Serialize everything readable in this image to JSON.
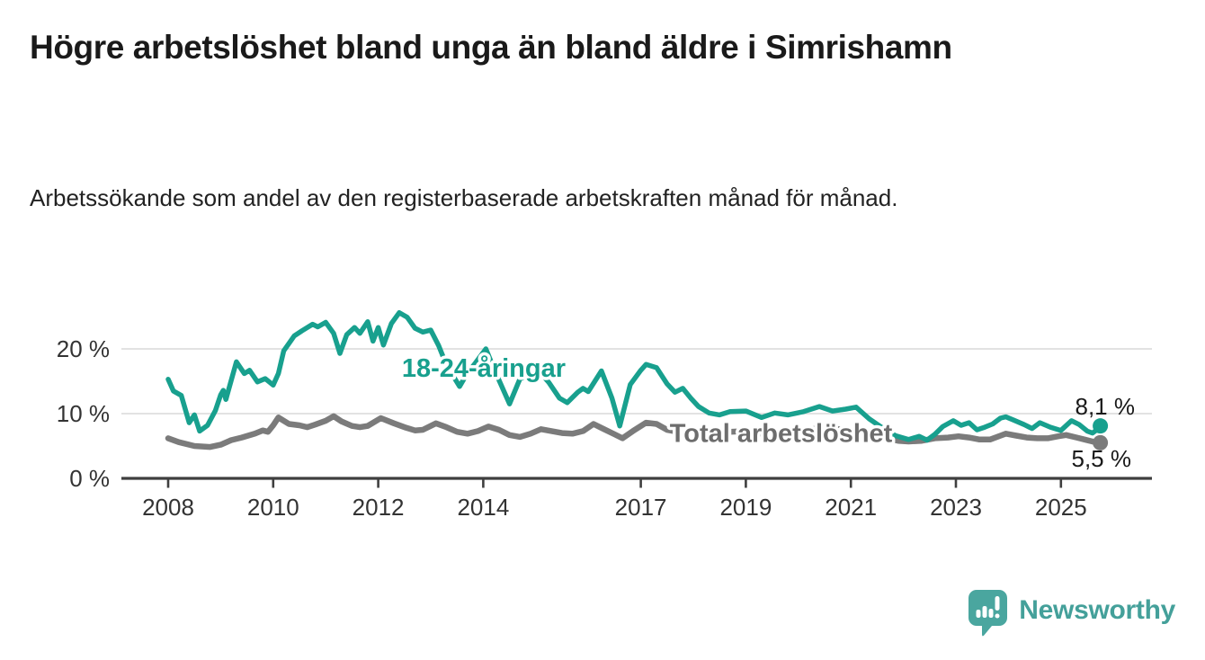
{
  "header": {
    "title": "Högre arbetslöshet bland unga än bland äldre i Simrishamn",
    "subtitle": "Arbetssökande som andel av den registerbaserade arbetskraften månad för månad."
  },
  "brand": {
    "name": "Newsworthy",
    "color": "#4aa69f",
    "icon": "newsworthy-speech-bubble-barchart-icon"
  },
  "chart_data": {
    "type": "line",
    "title": "Högre arbetslöshet bland unga än bland äldre i Simrishamn",
    "subtitle": "Arbetssökande som andel av den registerbaserade arbetskraften månad för månad.",
    "unit": "%",
    "grid": "horizontal",
    "legend_position": "inline-labels",
    "x_axis": {
      "type": "time-years",
      "domain": [
        2008.0,
        2025.75
      ],
      "ticks": [
        2008,
        2010,
        2012,
        2014,
        2017,
        2019,
        2021,
        2023,
        2025
      ],
      "tick_labels": [
        "2008",
        "2010",
        "2012",
        "2014",
        "2017",
        "2019",
        "2021",
        "2023",
        "2025"
      ]
    },
    "y_axis": {
      "domain": [
        0,
        27
      ],
      "ticks": [
        0,
        10,
        20
      ],
      "tick_labels": [
        "0 %",
        "10 %",
        "20 %"
      ]
    },
    "colors": {
      "grid": "#d9d9d9",
      "axis": "#3f3f3f",
      "tick_text": "#333333",
      "value_label_text": "#1a1a1a"
    },
    "series": [
      {
        "name": "Total arbetslöshet",
        "color": "#7b7b7b",
        "label_color": "#6d6d6d",
        "label_anchor": {
          "t": 2017.55,
          "v": 7.0
        },
        "end_value": 5.5,
        "end_label": "5,5 %",
        "stroke_width": 6.5,
        "points": [
          [
            2008.0,
            6.2
          ],
          [
            2008.2,
            5.6
          ],
          [
            2008.5,
            5.0
          ],
          [
            2008.8,
            4.85
          ],
          [
            2009.0,
            5.2
          ],
          [
            2009.2,
            5.9
          ],
          [
            2009.4,
            6.3
          ],
          [
            2009.65,
            6.9
          ],
          [
            2009.8,
            7.4
          ],
          [
            2009.9,
            7.2
          ],
          [
            2010.0,
            8.2
          ],
          [
            2010.1,
            9.4
          ],
          [
            2010.3,
            8.4
          ],
          [
            2010.5,
            8.2
          ],
          [
            2010.65,
            7.9
          ],
          [
            2010.8,
            8.3
          ],
          [
            2011.0,
            8.9
          ],
          [
            2011.15,
            9.6
          ],
          [
            2011.3,
            8.8
          ],
          [
            2011.5,
            8.1
          ],
          [
            2011.65,
            7.9
          ],
          [
            2011.8,
            8.1
          ],
          [
            2012.05,
            9.3
          ],
          [
            2012.3,
            8.5
          ],
          [
            2012.5,
            7.9
          ],
          [
            2012.7,
            7.4
          ],
          [
            2012.85,
            7.5
          ],
          [
            2013.1,
            8.5
          ],
          [
            2013.3,
            7.9
          ],
          [
            2013.5,
            7.2
          ],
          [
            2013.7,
            6.9
          ],
          [
            2013.9,
            7.3
          ],
          [
            2014.1,
            8.0
          ],
          [
            2014.3,
            7.5
          ],
          [
            2014.5,
            6.7
          ],
          [
            2014.7,
            6.4
          ],
          [
            2014.9,
            6.9
          ],
          [
            2015.1,
            7.6
          ],
          [
            2015.3,
            7.3
          ],
          [
            2015.5,
            7.0
          ],
          [
            2015.7,
            6.9
          ],
          [
            2015.9,
            7.3
          ],
          [
            2016.1,
            8.4
          ],
          [
            2016.3,
            7.6
          ],
          [
            2016.5,
            6.8
          ],
          [
            2016.65,
            6.2
          ],
          [
            2016.85,
            7.3
          ],
          [
            2017.1,
            8.6
          ],
          [
            2017.3,
            8.4
          ],
          [
            2017.5,
            7.5
          ],
          [
            2017.7,
            7.2
          ],
          [
            2017.9,
            7.5
          ],
          [
            2018.1,
            7.3
          ],
          [
            2018.4,
            7.0
          ],
          [
            2018.7,
            7.2
          ],
          [
            2019.0,
            7.3
          ],
          [
            2019.3,
            6.9
          ],
          [
            2019.6,
            7.0
          ],
          [
            2019.9,
            7.1
          ],
          [
            2020.2,
            7.4
          ],
          [
            2020.45,
            8.0
          ],
          [
            2020.7,
            7.7
          ],
          [
            2021.0,
            7.2
          ],
          [
            2021.3,
            6.8
          ],
          [
            2021.6,
            6.3
          ],
          [
            2021.9,
            5.8
          ],
          [
            2022.1,
            5.7
          ],
          [
            2022.35,
            5.8
          ],
          [
            2022.6,
            6.2
          ],
          [
            2022.85,
            6.3
          ],
          [
            2023.05,
            6.5
          ],
          [
            2023.25,
            6.3
          ],
          [
            2023.45,
            6.0
          ],
          [
            2023.65,
            6.0
          ],
          [
            2023.85,
            6.6
          ],
          [
            2023.95,
            6.9
          ],
          [
            2024.15,
            6.6
          ],
          [
            2024.35,
            6.3
          ],
          [
            2024.55,
            6.2
          ],
          [
            2024.75,
            6.2
          ],
          [
            2024.95,
            6.5
          ],
          [
            2025.1,
            6.7
          ],
          [
            2025.3,
            6.3
          ],
          [
            2025.45,
            6.0
          ],
          [
            2025.6,
            5.7
          ],
          [
            2025.75,
            5.5
          ]
        ]
      },
      {
        "name": "18-24-åringar",
        "color": "#18a08e",
        "label_color": "#18a08e",
        "label_anchor": {
          "t": 2012.45,
          "v": 17.1
        },
        "end_value": 8.1,
        "end_label": "8,1 %",
        "stroke_width": 5.5,
        "points": [
          [
            2008.0,
            15.3
          ],
          [
            2008.1,
            13.5
          ],
          [
            2008.25,
            12.8
          ],
          [
            2008.4,
            8.6
          ],
          [
            2008.5,
            9.8
          ],
          [
            2008.6,
            7.3
          ],
          [
            2008.75,
            8.2
          ],
          [
            2008.9,
            10.5
          ],
          [
            2009.0,
            12.9
          ],
          [
            2009.05,
            13.6
          ],
          [
            2009.1,
            12.2
          ],
          [
            2009.3,
            18.0
          ],
          [
            2009.45,
            16.2
          ],
          [
            2009.55,
            16.7
          ],
          [
            2009.7,
            14.9
          ],
          [
            2009.85,
            15.4
          ],
          [
            2010.0,
            14.4
          ],
          [
            2010.1,
            16.2
          ],
          [
            2010.2,
            19.7
          ],
          [
            2010.4,
            22.0
          ],
          [
            2010.55,
            22.8
          ],
          [
            2010.75,
            23.8
          ],
          [
            2010.85,
            23.4
          ],
          [
            2011.0,
            24.1
          ],
          [
            2011.15,
            22.4
          ],
          [
            2011.27,
            19.3
          ],
          [
            2011.4,
            22.2
          ],
          [
            2011.55,
            23.3
          ],
          [
            2011.65,
            22.4
          ],
          [
            2011.8,
            24.2
          ],
          [
            2011.9,
            21.2
          ],
          [
            2012.0,
            23.3
          ],
          [
            2012.1,
            20.6
          ],
          [
            2012.25,
            23.9
          ],
          [
            2012.4,
            25.6
          ],
          [
            2012.55,
            24.9
          ],
          [
            2012.7,
            23.2
          ],
          [
            2012.85,
            22.6
          ],
          [
            2013.0,
            22.9
          ],
          [
            2013.15,
            20.5
          ],
          [
            2013.3,
            17.5
          ],
          [
            2013.55,
            14.2
          ],
          [
            2013.7,
            16.3
          ],
          [
            2013.85,
            17.8
          ],
          [
            2014.05,
            20.0
          ],
          [
            2014.2,
            17.0
          ],
          [
            2014.5,
            11.5
          ],
          [
            2014.7,
            15.4
          ],
          [
            2014.9,
            15.8
          ],
          [
            2015.1,
            16.2
          ],
          [
            2015.25,
            14.8
          ],
          [
            2015.45,
            12.4
          ],
          [
            2015.6,
            11.7
          ],
          [
            2015.8,
            13.3
          ],
          [
            2015.9,
            13.9
          ],
          [
            2016.0,
            13.4
          ],
          [
            2016.25,
            16.6
          ],
          [
            2016.45,
            12.4
          ],
          [
            2016.6,
            8.1
          ],
          [
            2016.8,
            14.5
          ],
          [
            2017.0,
            16.7
          ],
          [
            2017.1,
            17.6
          ],
          [
            2017.3,
            17.1
          ],
          [
            2017.5,
            14.6
          ],
          [
            2017.65,
            13.3
          ],
          [
            2017.8,
            13.9
          ],
          [
            2017.95,
            12.4
          ],
          [
            2018.1,
            11.1
          ],
          [
            2018.3,
            10.1
          ],
          [
            2018.5,
            9.8
          ],
          [
            2018.7,
            10.3
          ],
          [
            2019.0,
            10.4
          ],
          [
            2019.3,
            9.4
          ],
          [
            2019.55,
            10.1
          ],
          [
            2019.8,
            9.8
          ],
          [
            2020.1,
            10.3
          ],
          [
            2020.4,
            11.1
          ],
          [
            2020.65,
            10.4
          ],
          [
            2020.9,
            10.7
          ],
          [
            2021.1,
            11.0
          ],
          [
            2021.35,
            9.2
          ],
          [
            2021.6,
            7.8
          ],
          [
            2021.85,
            6.6
          ],
          [
            2022.1,
            6.0
          ],
          [
            2022.3,
            6.5
          ],
          [
            2022.45,
            5.9
          ],
          [
            2022.6,
            6.8
          ],
          [
            2022.75,
            8.0
          ],
          [
            2022.95,
            8.9
          ],
          [
            2023.1,
            8.2
          ],
          [
            2023.25,
            8.6
          ],
          [
            2023.4,
            7.5
          ],
          [
            2023.55,
            7.9
          ],
          [
            2023.7,
            8.4
          ],
          [
            2023.85,
            9.3
          ],
          [
            2023.95,
            9.5
          ],
          [
            2024.1,
            9.0
          ],
          [
            2024.3,
            8.3
          ],
          [
            2024.45,
            7.7
          ],
          [
            2024.6,
            8.6
          ],
          [
            2024.8,
            7.9
          ],
          [
            2025.0,
            7.4
          ],
          [
            2025.2,
            8.9
          ],
          [
            2025.35,
            8.3
          ],
          [
            2025.5,
            7.3
          ],
          [
            2025.6,
            7.0
          ],
          [
            2025.7,
            7.6
          ],
          [
            2025.75,
            8.1
          ]
        ]
      }
    ]
  }
}
